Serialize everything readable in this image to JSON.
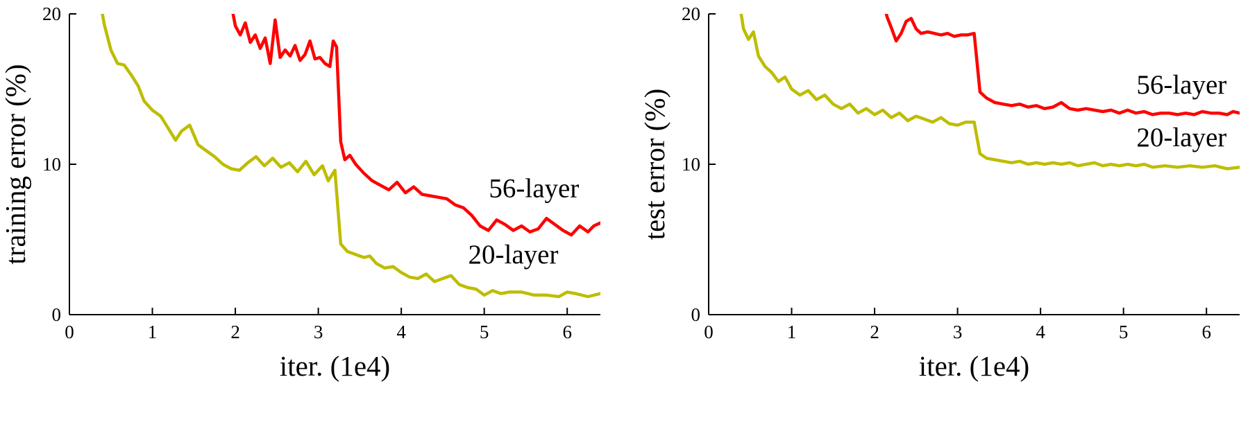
{
  "figure": {
    "background": "#ffffff",
    "axis_color": "#000000",
    "text_color": "#000000"
  },
  "chart_data": [
    {
      "id": "training-error",
      "type": "line",
      "title": "",
      "xlabel": "iter. (1e4)",
      "ylabel": "training error (%)",
      "xlim": [
        0,
        6.4
      ],
      "ylim": [
        0,
        20
      ],
      "xticks": [
        0,
        1,
        2,
        3,
        4,
        5,
        6
      ],
      "yticks": [
        0,
        10,
        20
      ],
      "grid": false,
      "legend_position": "inline-annotations",
      "series": [
        {
          "name": "56-layer",
          "color": "#ff0000",
          "points": [
            [
              1.92,
              21.5
            ],
            [
              2.0,
              19.2
            ],
            [
              2.06,
              18.6
            ],
            [
              2.12,
              19.4
            ],
            [
              2.18,
              18.1
            ],
            [
              2.24,
              18.6
            ],
            [
              2.3,
              17.7
            ],
            [
              2.36,
              18.4
            ],
            [
              2.42,
              16.7
            ],
            [
              2.48,
              19.6
            ],
            [
              2.54,
              17.1
            ],
            [
              2.6,
              17.6
            ],
            [
              2.66,
              17.2
            ],
            [
              2.72,
              17.9
            ],
            [
              2.78,
              16.9
            ],
            [
              2.84,
              17.3
            ],
            [
              2.9,
              18.2
            ],
            [
              2.96,
              17.0
            ],
            [
              3.02,
              17.1
            ],
            [
              3.08,
              16.7
            ],
            [
              3.14,
              16.5
            ],
            [
              3.18,
              18.2
            ],
            [
              3.22,
              17.8
            ],
            [
              3.27,
              11.5
            ],
            [
              3.32,
              10.3
            ],
            [
              3.38,
              10.6
            ],
            [
              3.45,
              10.0
            ],
            [
              3.55,
              9.4
            ],
            [
              3.65,
              8.9
            ],
            [
              3.75,
              8.6
            ],
            [
              3.85,
              8.3
            ],
            [
              3.95,
              8.8
            ],
            [
              4.05,
              8.1
            ],
            [
              4.15,
              8.5
            ],
            [
              4.25,
              8.0
            ],
            [
              4.35,
              7.9
            ],
            [
              4.45,
              7.8
            ],
            [
              4.55,
              7.7
            ],
            [
              4.65,
              7.3
            ],
            [
              4.75,
              7.1
            ],
            [
              4.85,
              6.6
            ],
            [
              4.95,
              5.9
            ],
            [
              5.05,
              5.6
            ],
            [
              5.15,
              6.3
            ],
            [
              5.25,
              6.0
            ],
            [
              5.35,
              5.6
            ],
            [
              5.45,
              5.9
            ],
            [
              5.55,
              5.5
            ],
            [
              5.65,
              5.7
            ],
            [
              5.75,
              6.4
            ],
            [
              5.85,
              6.0
            ],
            [
              5.95,
              5.6
            ],
            [
              6.05,
              5.3
            ],
            [
              6.15,
              5.9
            ],
            [
              6.25,
              5.5
            ],
            [
              6.32,
              5.9
            ],
            [
              6.4,
              6.1
            ]
          ]
        },
        {
          "name": "20-layer",
          "color": "#bdbd00",
          "points": [
            [
              0.35,
              21.5
            ],
            [
              0.42,
              19.3
            ],
            [
              0.5,
              17.6
            ],
            [
              0.58,
              16.7
            ],
            [
              0.66,
              16.6
            ],
            [
              0.75,
              15.9
            ],
            [
              0.83,
              15.2
            ],
            [
              0.9,
              14.2
            ],
            [
              1.0,
              13.6
            ],
            [
              1.1,
              13.2
            ],
            [
              1.18,
              12.5
            ],
            [
              1.28,
              11.6
            ],
            [
              1.35,
              12.2
            ],
            [
              1.45,
              12.6
            ],
            [
              1.55,
              11.3
            ],
            [
              1.65,
              10.9
            ],
            [
              1.75,
              10.5
            ],
            [
              1.85,
              10.0
            ],
            [
              1.95,
              9.7
            ],
            [
              2.05,
              9.6
            ],
            [
              2.15,
              10.1
            ],
            [
              2.25,
              10.5
            ],
            [
              2.35,
              9.9
            ],
            [
              2.45,
              10.4
            ],
            [
              2.55,
              9.8
            ],
            [
              2.65,
              10.1
            ],
            [
              2.75,
              9.5
            ],
            [
              2.85,
              10.2
            ],
            [
              2.95,
              9.3
            ],
            [
              3.05,
              9.9
            ],
            [
              3.12,
              8.9
            ],
            [
              3.2,
              9.6
            ],
            [
              3.27,
              4.7
            ],
            [
              3.35,
              4.2
            ],
            [
              3.45,
              4.0
            ],
            [
              3.55,
              3.8
            ],
            [
              3.62,
              3.9
            ],
            [
              3.7,
              3.4
            ],
            [
              3.8,
              3.1
            ],
            [
              3.9,
              3.2
            ],
            [
              4.0,
              2.8
            ],
            [
              4.1,
              2.5
            ],
            [
              4.2,
              2.4
            ],
            [
              4.3,
              2.7
            ],
            [
              4.4,
              2.2
            ],
            [
              4.5,
              2.4
            ],
            [
              4.6,
              2.6
            ],
            [
              4.7,
              2.0
            ],
            [
              4.8,
              1.8
            ],
            [
              4.9,
              1.7
            ],
            [
              5.0,
              1.3
            ],
            [
              5.1,
              1.6
            ],
            [
              5.2,
              1.4
            ],
            [
              5.3,
              1.5
            ],
            [
              5.45,
              1.5
            ],
            [
              5.6,
              1.3
            ],
            [
              5.75,
              1.3
            ],
            [
              5.9,
              1.2
            ],
            [
              6.0,
              1.5
            ],
            [
              6.1,
              1.4
            ],
            [
              6.25,
              1.2
            ],
            [
              6.4,
              1.4
            ]
          ]
        }
      ],
      "annotations": [
        {
          "text": "56-layer",
          "x": 5.6,
          "y": 7.8
        },
        {
          "text": "20-layer",
          "x": 5.35,
          "y": 3.4
        }
      ]
    },
    {
      "id": "test-error",
      "type": "line",
      "title": "",
      "xlabel": "iter. (1e4)",
      "ylabel": "test error (%)",
      "xlim": [
        0,
        6.4
      ],
      "ylim": [
        0,
        20
      ],
      "xticks": [
        0,
        1,
        2,
        3,
        4,
        5,
        6
      ],
      "yticks": [
        0,
        10,
        20
      ],
      "grid": false,
      "legend_position": "inline-annotations",
      "series": [
        {
          "name": "56-layer",
          "color": "#ff0000",
          "points": [
            [
              2.08,
              21.5
            ],
            [
              2.15,
              19.8
            ],
            [
              2.2,
              19.1
            ],
            [
              2.26,
              18.2
            ],
            [
              2.32,
              18.7
            ],
            [
              2.38,
              19.5
            ],
            [
              2.44,
              19.7
            ],
            [
              2.5,
              19.0
            ],
            [
              2.56,
              18.7
            ],
            [
              2.64,
              18.8
            ],
            [
              2.72,
              18.7
            ],
            [
              2.8,
              18.6
            ],
            [
              2.88,
              18.7
            ],
            [
              2.96,
              18.5
            ],
            [
              3.04,
              18.6
            ],
            [
              3.12,
              18.6
            ],
            [
              3.2,
              18.7
            ],
            [
              3.27,
              14.8
            ],
            [
              3.35,
              14.4
            ],
            [
              3.45,
              14.1
            ],
            [
              3.55,
              14.0
            ],
            [
              3.65,
              13.9
            ],
            [
              3.75,
              14.0
            ],
            [
              3.85,
              13.8
            ],
            [
              3.95,
              13.9
            ],
            [
              4.05,
              13.7
            ],
            [
              4.15,
              13.8
            ],
            [
              4.25,
              14.1
            ],
            [
              4.35,
              13.7
            ],
            [
              4.45,
              13.6
            ],
            [
              4.55,
              13.7
            ],
            [
              4.65,
              13.6
            ],
            [
              4.75,
              13.5
            ],
            [
              4.85,
              13.6
            ],
            [
              4.95,
              13.4
            ],
            [
              5.05,
              13.6
            ],
            [
              5.15,
              13.4
            ],
            [
              5.25,
              13.5
            ],
            [
              5.35,
              13.3
            ],
            [
              5.45,
              13.4
            ],
            [
              5.55,
              13.4
            ],
            [
              5.65,
              13.3
            ],
            [
              5.75,
              13.4
            ],
            [
              5.85,
              13.3
            ],
            [
              5.95,
              13.5
            ],
            [
              6.05,
              13.4
            ],
            [
              6.15,
              13.4
            ],
            [
              6.25,
              13.3
            ],
            [
              6.32,
              13.5
            ],
            [
              6.4,
              13.4
            ]
          ]
        },
        {
          "name": "20-layer",
          "color": "#bdbd00",
          "points": [
            [
              0.35,
              21.5
            ],
            [
              0.42,
              19.0
            ],
            [
              0.48,
              18.3
            ],
            [
              0.54,
              18.8
            ],
            [
              0.6,
              17.2
            ],
            [
              0.68,
              16.5
            ],
            [
              0.76,
              16.1
            ],
            [
              0.84,
              15.5
            ],
            [
              0.92,
              15.8
            ],
            [
              1.0,
              15.0
            ],
            [
              1.1,
              14.6
            ],
            [
              1.2,
              14.9
            ],
            [
              1.3,
              14.3
            ],
            [
              1.4,
              14.6
            ],
            [
              1.5,
              14.0
            ],
            [
              1.6,
              13.7
            ],
            [
              1.7,
              14.0
            ],
            [
              1.8,
              13.4
            ],
            [
              1.9,
              13.7
            ],
            [
              2.0,
              13.3
            ],
            [
              2.1,
              13.6
            ],
            [
              2.2,
              13.1
            ],
            [
              2.3,
              13.4
            ],
            [
              2.4,
              12.9
            ],
            [
              2.5,
              13.2
            ],
            [
              2.6,
              13.0
            ],
            [
              2.7,
              12.8
            ],
            [
              2.8,
              13.1
            ],
            [
              2.9,
              12.7
            ],
            [
              3.0,
              12.6
            ],
            [
              3.1,
              12.8
            ],
            [
              3.2,
              12.8
            ],
            [
              3.27,
              10.7
            ],
            [
              3.35,
              10.4
            ],
            [
              3.45,
              10.3
            ],
            [
              3.55,
              10.2
            ],
            [
              3.65,
              10.1
            ],
            [
              3.75,
              10.2
            ],
            [
              3.85,
              10.0
            ],
            [
              3.95,
              10.1
            ],
            [
              4.05,
              10.0
            ],
            [
              4.15,
              10.1
            ],
            [
              4.25,
              10.0
            ],
            [
              4.35,
              10.1
            ],
            [
              4.45,
              9.9
            ],
            [
              4.55,
              10.0
            ],
            [
              4.65,
              10.1
            ],
            [
              4.75,
              9.9
            ],
            [
              4.85,
              10.0
            ],
            [
              4.95,
              9.9
            ],
            [
              5.05,
              10.0
            ],
            [
              5.15,
              9.9
            ],
            [
              5.25,
              10.0
            ],
            [
              5.35,
              9.8
            ],
            [
              5.5,
              9.9
            ],
            [
              5.65,
              9.8
            ],
            [
              5.8,
              9.9
            ],
            [
              5.95,
              9.8
            ],
            [
              6.1,
              9.9
            ],
            [
              6.25,
              9.7
            ],
            [
              6.4,
              9.8
            ]
          ]
        }
      ],
      "annotations": [
        {
          "text": "56-layer",
          "x": 5.7,
          "y": 14.7
        },
        {
          "text": "20-layer",
          "x": 5.7,
          "y": 11.2
        }
      ]
    }
  ]
}
